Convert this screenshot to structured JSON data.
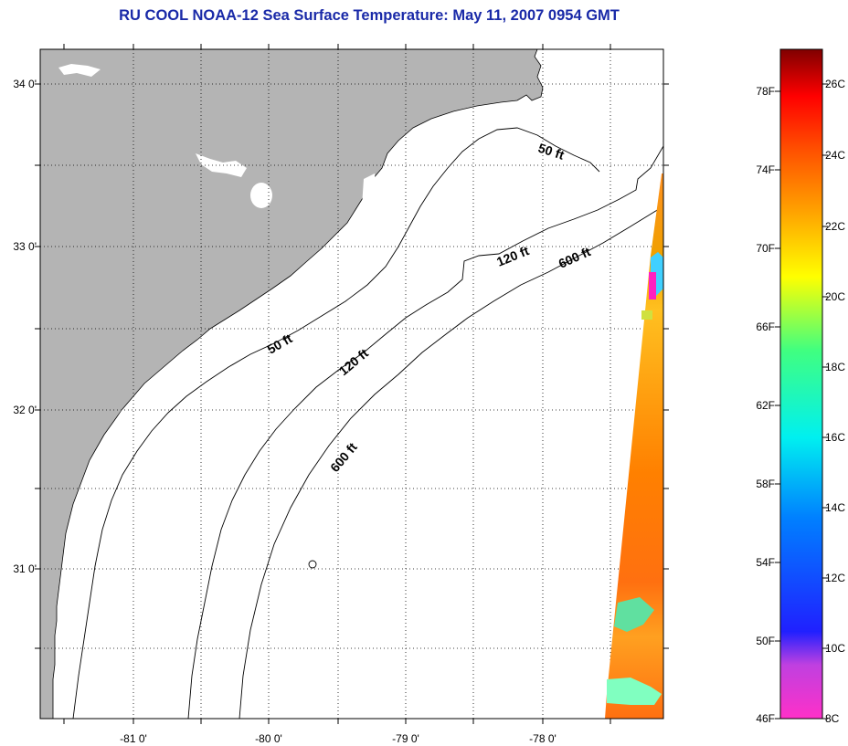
{
  "title": "RU COOL  NOAA-12  Sea Surface Temperature:  May 11, 2007 0954 GMT",
  "map": {
    "lat_ticks": [
      "34 0'",
      "33 0'",
      "32 0'",
      "31 0'"
    ],
    "lon_ticks": [
      "-81 0'",
      "-80 0'",
      "-79 0'",
      "-78 0'"
    ],
    "contour_labels": [
      "50 ft",
      "120 ft",
      "600 ft",
      "50 ft",
      "120 ft",
      "600 ft"
    ],
    "colors": {
      "land": "#b4b4b4",
      "water": "#ffffff",
      "grid": "#000000"
    }
  },
  "colorbar": {
    "f_labels": [
      "78F",
      "74F",
      "70F",
      "66F",
      "62F",
      "58F",
      "54F",
      "50F",
      "46F"
    ],
    "c_labels": [
      "26C",
      "24C",
      "22C",
      "20C",
      "18C",
      "16C",
      "14C",
      "12C",
      "10C",
      "8C"
    ],
    "range_f": [
      46,
      80
    ]
  }
}
